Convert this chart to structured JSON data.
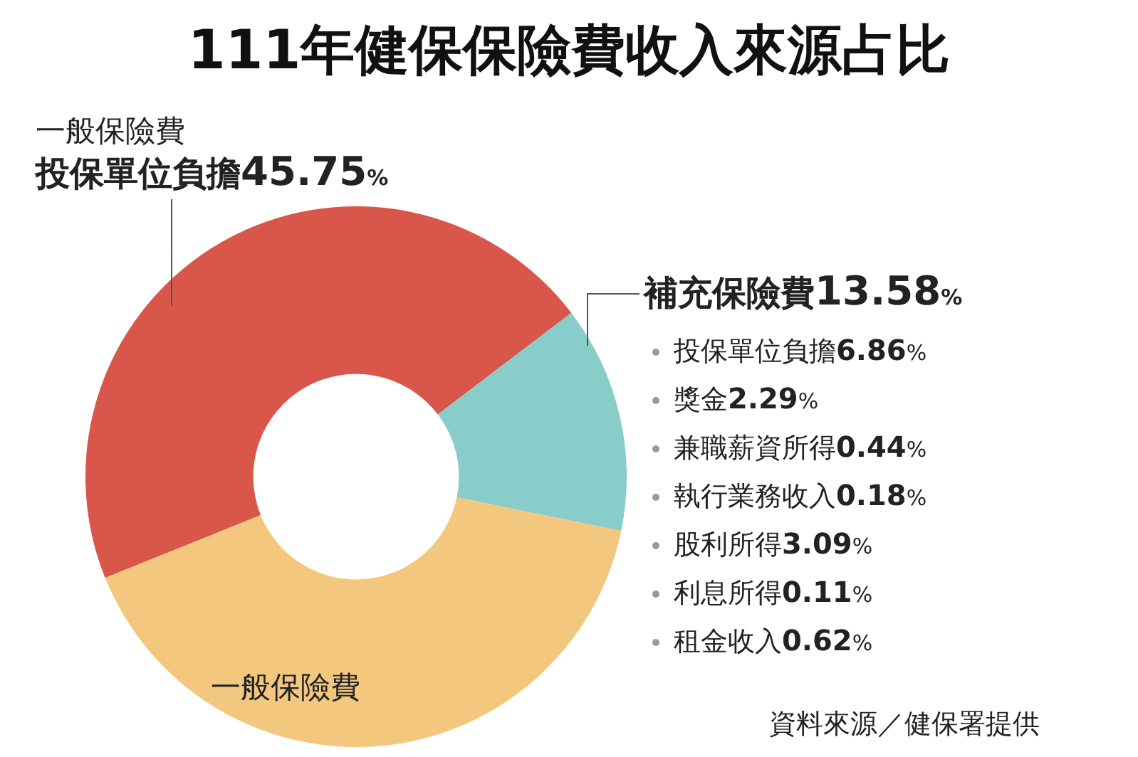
{
  "chart_data": {
    "type": "donut",
    "title": "111年健保保險費收入來源占比",
    "categories": [
      "投保單位負擔",
      "補充保險費",
      "一般保險費"
    ],
    "values": [
      45.75,
      13.58,
      40.67
    ],
    "value_labels": [
      "45.75%",
      "13.58%",
      null
    ],
    "colors": [
      "#d9574a",
      "#88cdc9",
      "#f4c77f"
    ],
    "legend": false,
    "annotations": [
      "一般保險費",
      "投保單位負擔6.86%",
      "獎金2.29%",
      "兼職薪資所得0.44%",
      "執行業務收入0.18%",
      "股利所得3.09%",
      "利息所得0.11%",
      "租金收入0.62%",
      "資料來源／健保署提供"
    ]
  }
}
